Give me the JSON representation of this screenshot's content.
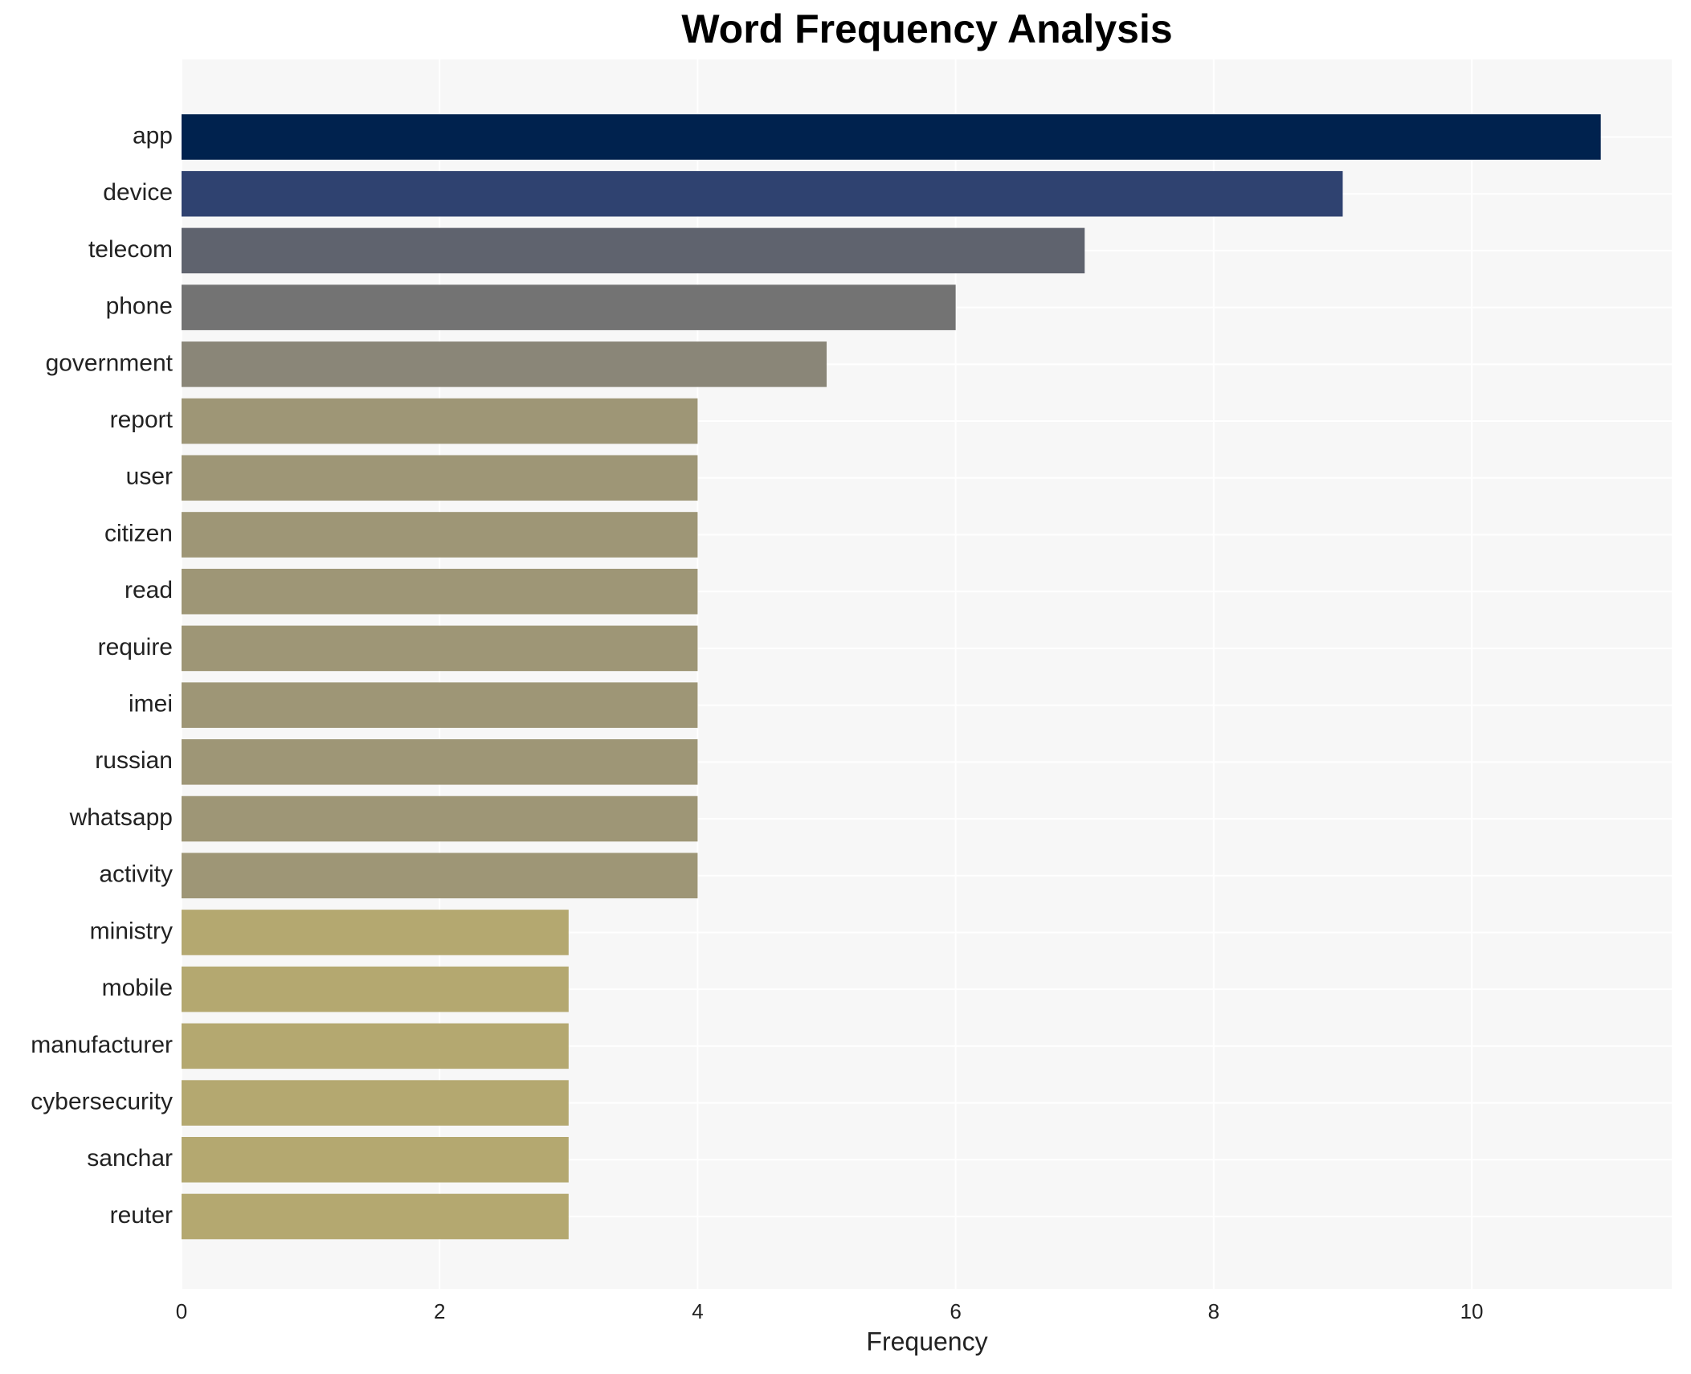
{
  "chart_data": {
    "type": "barh",
    "title": "Word Frequency Analysis",
    "x_label": "Frequency",
    "categories": [
      "app",
      "device",
      "telecom",
      "phone",
      "government",
      "report",
      "user",
      "citizen",
      "read",
      "require",
      "imei",
      "russian",
      "whatsapp",
      "activity",
      "ministry",
      "mobile",
      "manufacturer",
      "cybersecurity",
      "sanchar",
      "reuter"
    ],
    "values": [
      11,
      9,
      7,
      6,
      5,
      4,
      4,
      4,
      4,
      4,
      4,
      4,
      4,
      4,
      3,
      3,
      3,
      3,
      3,
      3
    ],
    "colors": [
      "#00224e",
      "#2f4270",
      "#5f636e",
      "#737373",
      "#8a8678",
      "#9e9676",
      "#9e9676",
      "#9e9676",
      "#9e9676",
      "#9e9676",
      "#9e9676",
      "#9e9676",
      "#9e9676",
      "#9e9676",
      "#b4a870",
      "#b4a870",
      "#b4a870",
      "#b4a870",
      "#b4a870",
      "#b4a870"
    ],
    "xlim": [
      0,
      11.55
    ],
    "xticks": [
      0,
      2,
      4,
      6,
      8,
      10
    ],
    "grid": true
  }
}
